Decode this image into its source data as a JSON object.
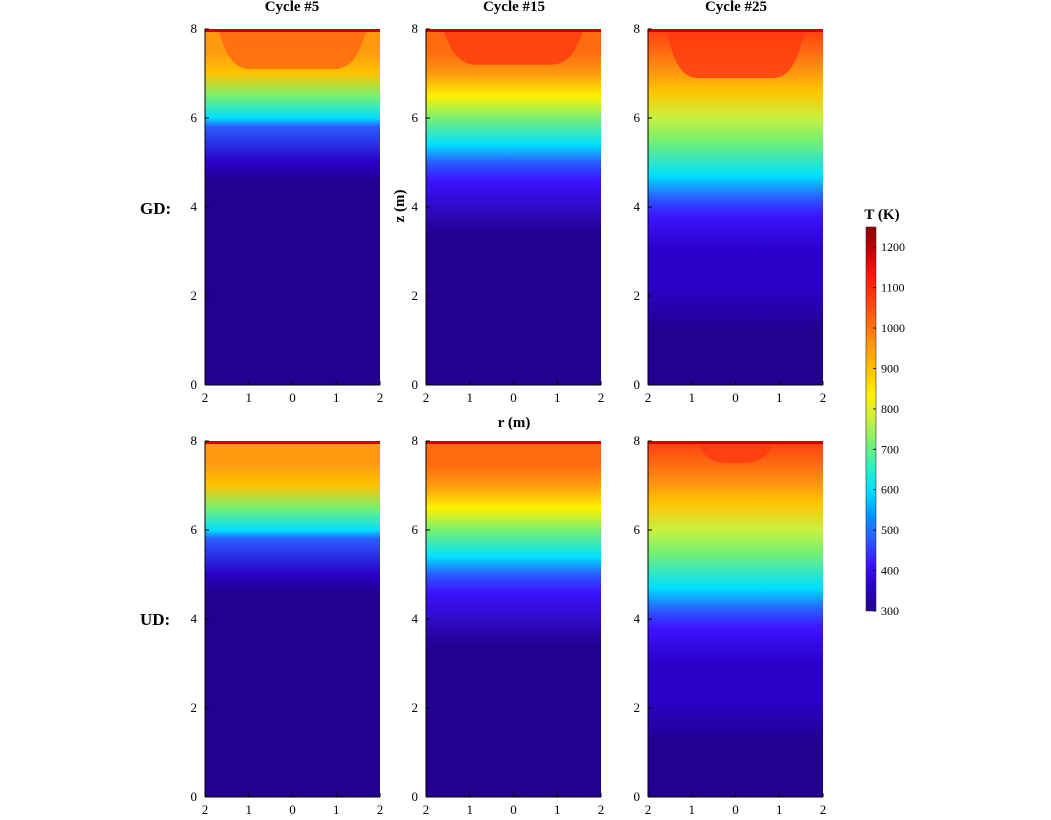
{
  "chart_data": {
    "type": "heatmap",
    "panel_titles": [
      "Cycle #5",
      "Cycle #15",
      "Cycle #25"
    ],
    "row_labels": [
      "GD:",
      "UD:"
    ],
    "xlabel": "r (m)",
    "ylabel": "z (m)",
    "x_ticks": [
      "2",
      "1",
      "0",
      "1",
      "2"
    ],
    "y_ticks": [
      "0",
      "2",
      "4",
      "6",
      "8"
    ],
    "xlim": [
      -2,
      2
    ],
    "ylim": [
      0,
      8
    ],
    "colorbar": {
      "title": "T (K)",
      "ticks": [
        "300",
        "400",
        "500",
        "600",
        "700",
        "800",
        "900",
        "1000",
        "1100",
        "1200"
      ],
      "range": [
        300,
        1250
      ],
      "colormap": [
        "#23008f",
        "#2a00c8",
        "#3c14ff",
        "#2a5cff",
        "#0096ff",
        "#00e0ff",
        "#2cf0c0",
        "#78f070",
        "#c8f040",
        "#fff000",
        "#ffc400",
        "#ff9a10",
        "#ff6a10",
        "#ff3c10",
        "#ff1410",
        "#c80000",
        "#8c0000"
      ]
    },
    "panels": [
      {
        "row": "GD",
        "cycle": "Cycle #5",
        "temperature_profile": [
          [
            0,
            300
          ],
          [
            4.6,
            310
          ],
          [
            5.0,
            370
          ],
          [
            5.8,
            480
          ],
          [
            6.0,
            580
          ],
          [
            6.5,
            720
          ],
          [
            7.0,
            880
          ],
          [
            7.5,
            930
          ],
          [
            7.9,
            950
          ],
          [
            8.0,
            1000
          ]
        ],
        "center_hot_zone": {
          "depth": 0.9,
          "edge_r": 1.6,
          "temperature": 1000
        }
      },
      {
        "row": "GD",
        "cycle": "Cycle #15",
        "temperature_profile": [
          [
            0,
            300
          ],
          [
            2.6,
            310
          ],
          [
            3.4,
            340
          ],
          [
            4.6,
            420
          ],
          [
            5.0,
            520
          ],
          [
            5.4,
            600
          ],
          [
            6.0,
            720
          ],
          [
            6.5,
            830
          ],
          [
            7.0,
            930
          ],
          [
            7.5,
            980
          ],
          [
            8.0,
            1020
          ]
        ],
        "center_hot_zone": {
          "depth": 0.8,
          "edge_r": 1.5,
          "temperature": 1050
        }
      },
      {
        "row": "GD",
        "cycle": "Cycle #25",
        "temperature_profile": [
          [
            0,
            300
          ],
          [
            1.2,
            320
          ],
          [
            2.2,
            360
          ],
          [
            3.0,
            400
          ],
          [
            3.8,
            450
          ],
          [
            4.2,
            520
          ],
          [
            4.7,
            600
          ],
          [
            5.5,
            700
          ],
          [
            6.0,
            780
          ],
          [
            6.6,
            870
          ],
          [
            7.0,
            950
          ],
          [
            7.5,
            1000
          ],
          [
            8.0,
            1050
          ]
        ],
        "center_hot_zone": {
          "depth": 1.1,
          "edge_r": 1.5,
          "temperature": 1080
        }
      },
      {
        "row": "UD",
        "cycle": "Cycle #5",
        "temperature_profile": [
          [
            0,
            300
          ],
          [
            4.6,
            310
          ],
          [
            5.0,
            370
          ],
          [
            5.8,
            480
          ],
          [
            6.0,
            580
          ],
          [
            6.5,
            720
          ],
          [
            7.0,
            880
          ],
          [
            7.5,
            930
          ],
          [
            7.9,
            950
          ],
          [
            8.0,
            1000
          ]
        ],
        "center_hot_zone": null
      },
      {
        "row": "UD",
        "cycle": "Cycle #15",
        "temperature_profile": [
          [
            0,
            300
          ],
          [
            2.6,
            310
          ],
          [
            3.4,
            340
          ],
          [
            4.6,
            420
          ],
          [
            5.0,
            520
          ],
          [
            5.4,
            600
          ],
          [
            6.0,
            720
          ],
          [
            6.5,
            830
          ],
          [
            7.0,
            930
          ],
          [
            7.5,
            980
          ],
          [
            8.0,
            1020
          ]
        ],
        "center_hot_zone": null
      },
      {
        "row": "UD",
        "cycle": "Cycle #25",
        "temperature_profile": [
          [
            0,
            300
          ],
          [
            1.2,
            320
          ],
          [
            2.2,
            360
          ],
          [
            3.0,
            400
          ],
          [
            3.8,
            450
          ],
          [
            4.2,
            520
          ],
          [
            4.7,
            600
          ],
          [
            5.5,
            700
          ],
          [
            6.0,
            780
          ],
          [
            6.6,
            870
          ],
          [
            7.0,
            950
          ],
          [
            7.5,
            1020
          ],
          [
            8.0,
            1060
          ]
        ],
        "center_hot_zone": {
          "depth": 0.5,
          "edge_r": 0.8,
          "temperature": 1080
        }
      }
    ]
  }
}
